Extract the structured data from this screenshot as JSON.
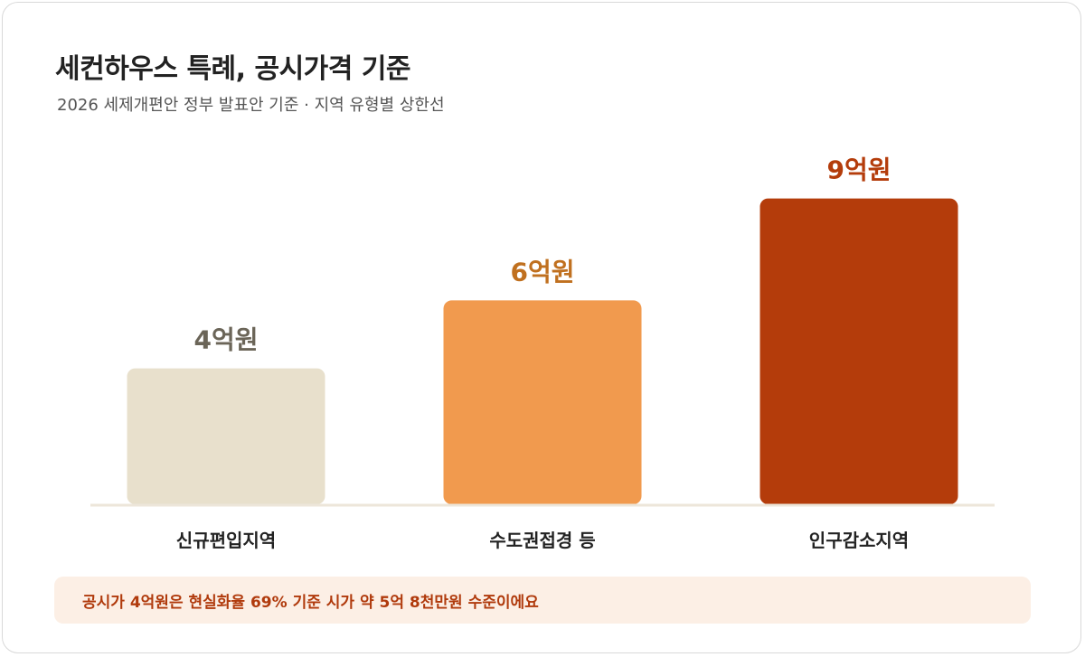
{
  "header": {
    "title": "세컨하우스 특례, 공시가격 기준",
    "subtitle": "2026 세제개편안 정부 발표안 기준 · 지역 유형별 상한선"
  },
  "chart_data": {
    "type": "bar",
    "categories": [
      "신규편입지역",
      "수도권접경 등",
      "인구감소지역"
    ],
    "values": [
      4,
      6,
      9
    ],
    "value_labels": [
      "4억원",
      "6억원",
      "9억원"
    ],
    "unit": "억원",
    "bar_colors": [
      "#e8e0cc",
      "#f19a4e",
      "#b43c0b"
    ],
    "label_colors": [
      "#6b6558",
      "#c0701f",
      "#b43c0b"
    ],
    "ylim": [
      0,
      10
    ],
    "grid": false,
    "legend": "none"
  },
  "footnote": {
    "text": "공시가 4억원은 현실화율 69% 기준 시가 약 5억 8천만원 수준이에요"
  },
  "colors": {
    "baseline": "#ede6da",
    "callout_bg": "#fcefe5",
    "callout_text": "#b03a0c",
    "category_text": "#222222"
  }
}
